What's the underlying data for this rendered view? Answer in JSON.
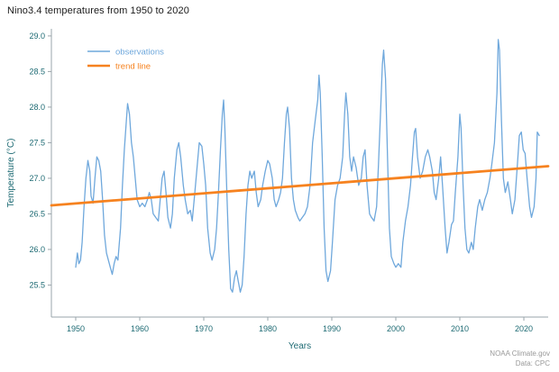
{
  "chart_data": {
    "type": "line",
    "title": "Nino3.4 temperatures from 1950 to 2020",
    "xlabel": "Years",
    "ylabel": "Temperature (°C)",
    "xlim": [
      1946.2,
      2023.8
    ],
    "ylim": [
      25.05,
      29.1
    ],
    "xticks": [
      1950,
      1960,
      1970,
      1980,
      1990,
      2000,
      2010,
      2020
    ],
    "yticks": [
      25.5,
      26.0,
      26.5,
      27.0,
      27.5,
      28.0,
      28.5,
      29.0
    ],
    "grid": false,
    "legend_position": "upper-left",
    "series": [
      {
        "name": "observations",
        "color": "#6fa8dc",
        "width": 1.3,
        "points": [
          [
            1950.0,
            25.75
          ],
          [
            1950.25,
            25.95
          ],
          [
            1950.5,
            25.8
          ],
          [
            1950.75,
            25.85
          ],
          [
            1951.0,
            26.1
          ],
          [
            1951.3,
            26.6
          ],
          [
            1951.6,
            27.0
          ],
          [
            1951.9,
            27.25
          ],
          [
            1952.2,
            27.1
          ],
          [
            1952.4,
            26.75
          ],
          [
            1952.7,
            26.65
          ],
          [
            1953.0,
            27.0
          ],
          [
            1953.3,
            27.3
          ],
          [
            1953.6,
            27.25
          ],
          [
            1953.9,
            27.1
          ],
          [
            1954.2,
            26.7
          ],
          [
            1954.5,
            26.2
          ],
          [
            1954.8,
            25.95
          ],
          [
            1955.1,
            25.85
          ],
          [
            1955.4,
            25.75
          ],
          [
            1955.7,
            25.65
          ],
          [
            1956.0,
            25.8
          ],
          [
            1956.3,
            25.9
          ],
          [
            1956.6,
            25.85
          ],
          [
            1957.0,
            26.3
          ],
          [
            1957.3,
            26.9
          ],
          [
            1957.6,
            27.4
          ],
          [
            1957.9,
            27.8
          ],
          [
            1958.1,
            28.05
          ],
          [
            1958.4,
            27.9
          ],
          [
            1958.7,
            27.5
          ],
          [
            1959.0,
            27.3
          ],
          [
            1959.3,
            27.0
          ],
          [
            1959.6,
            26.7
          ],
          [
            1960.0,
            26.6
          ],
          [
            1960.4,
            26.65
          ],
          [
            1960.8,
            26.6
          ],
          [
            1961.2,
            26.7
          ],
          [
            1961.5,
            26.8
          ],
          [
            1961.8,
            26.7
          ],
          [
            1962.1,
            26.5
          ],
          [
            1962.5,
            26.45
          ],
          [
            1962.9,
            26.4
          ],
          [
            1963.2,
            26.7
          ],
          [
            1963.5,
            27.0
          ],
          [
            1963.8,
            27.1
          ],
          [
            1964.1,
            26.8
          ],
          [
            1964.4,
            26.45
          ],
          [
            1964.8,
            26.3
          ],
          [
            1965.1,
            26.5
          ],
          [
            1965.4,
            27.0
          ],
          [
            1965.8,
            27.4
          ],
          [
            1966.1,
            27.5
          ],
          [
            1966.4,
            27.3
          ],
          [
            1966.8,
            26.9
          ],
          [
            1967.1,
            26.7
          ],
          [
            1967.5,
            26.5
          ],
          [
            1967.9,
            26.55
          ],
          [
            1968.2,
            26.4
          ],
          [
            1968.6,
            26.8
          ],
          [
            1969.0,
            27.2
          ],
          [
            1969.3,
            27.5
          ],
          [
            1969.7,
            27.45
          ],
          [
            1970.0,
            27.2
          ],
          [
            1970.3,
            26.9
          ],
          [
            1970.6,
            26.3
          ],
          [
            1971.0,
            25.95
          ],
          [
            1971.3,
            25.85
          ],
          [
            1971.7,
            26.0
          ],
          [
            1972.0,
            26.3
          ],
          [
            1972.3,
            26.8
          ],
          [
            1972.6,
            27.4
          ],
          [
            1972.9,
            27.9
          ],
          [
            1973.1,
            28.1
          ],
          [
            1973.3,
            27.7
          ],
          [
            1973.6,
            26.8
          ],
          [
            1973.9,
            26.0
          ],
          [
            1974.2,
            25.45
          ],
          [
            1974.5,
            25.4
          ],
          [
            1974.8,
            25.6
          ],
          [
            1975.1,
            25.7
          ],
          [
            1975.4,
            25.55
          ],
          [
            1975.7,
            25.4
          ],
          [
            1976.0,
            25.5
          ],
          [
            1976.3,
            25.9
          ],
          [
            1976.6,
            26.5
          ],
          [
            1976.9,
            26.9
          ],
          [
            1977.2,
            27.1
          ],
          [
            1977.5,
            27.0
          ],
          [
            1977.9,
            27.1
          ],
          [
            1978.2,
            26.8
          ],
          [
            1978.5,
            26.6
          ],
          [
            1978.9,
            26.7
          ],
          [
            1979.2,
            26.9
          ],
          [
            1979.6,
            27.1
          ],
          [
            1980.0,
            27.25
          ],
          [
            1980.3,
            27.2
          ],
          [
            1980.7,
            27.0
          ],
          [
            1981.0,
            26.7
          ],
          [
            1981.3,
            26.6
          ],
          [
            1981.7,
            26.7
          ],
          [
            1982.0,
            26.8
          ],
          [
            1982.3,
            27.0
          ],
          [
            1982.6,
            27.5
          ],
          [
            1982.9,
            27.9
          ],
          [
            1983.1,
            28.0
          ],
          [
            1983.4,
            27.7
          ],
          [
            1983.7,
            27.0
          ],
          [
            1984.0,
            26.7
          ],
          [
            1984.3,
            26.55
          ],
          [
            1984.7,
            26.45
          ],
          [
            1985.0,
            26.4
          ],
          [
            1985.4,
            26.45
          ],
          [
            1985.8,
            26.5
          ],
          [
            1986.2,
            26.6
          ],
          [
            1986.6,
            26.9
          ],
          [
            1987.0,
            27.5
          ],
          [
            1987.4,
            27.8
          ],
          [
            1987.8,
            28.1
          ],
          [
            1988.0,
            28.45
          ],
          [
            1988.2,
            28.2
          ],
          [
            1988.5,
            27.3
          ],
          [
            1988.8,
            26.3
          ],
          [
            1989.1,
            25.7
          ],
          [
            1989.4,
            25.55
          ],
          [
            1989.8,
            25.7
          ],
          [
            1990.1,
            26.1
          ],
          [
            1990.5,
            26.7
          ],
          [
            1990.9,
            26.9
          ],
          [
            1991.3,
            27.0
          ],
          [
            1991.7,
            27.3
          ],
          [
            1992.0,
            27.9
          ],
          [
            1992.2,
            28.2
          ],
          [
            1992.5,
            27.9
          ],
          [
            1992.8,
            27.3
          ],
          [
            1993.1,
            27.1
          ],
          [
            1993.4,
            27.3
          ],
          [
            1993.8,
            27.15
          ],
          [
            1994.2,
            26.9
          ],
          [
            1994.6,
            27.0
          ],
          [
            1994.9,
            27.3
          ],
          [
            1995.2,
            27.4
          ],
          [
            1995.5,
            26.9
          ],
          [
            1995.9,
            26.5
          ],
          [
            1996.2,
            26.45
          ],
          [
            1996.6,
            26.4
          ],
          [
            1997.0,
            26.6
          ],
          [
            1997.3,
            27.2
          ],
          [
            1997.6,
            27.9
          ],
          [
            1997.9,
            28.6
          ],
          [
            1998.1,
            28.8
          ],
          [
            1998.4,
            28.4
          ],
          [
            1998.7,
            27.3
          ],
          [
            1999.0,
            26.3
          ],
          [
            1999.3,
            25.9
          ],
          [
            1999.7,
            25.8
          ],
          [
            2000.0,
            25.75
          ],
          [
            2000.4,
            25.8
          ],
          [
            2000.8,
            25.75
          ],
          [
            2001.1,
            26.1
          ],
          [
            2001.5,
            26.4
          ],
          [
            2001.9,
            26.6
          ],
          [
            2002.3,
            26.9
          ],
          [
            2002.6,
            27.3
          ],
          [
            2002.9,
            27.65
          ],
          [
            2003.1,
            27.7
          ],
          [
            2003.4,
            27.3
          ],
          [
            2003.8,
            27.0
          ],
          [
            2004.2,
            27.1
          ],
          [
            2004.6,
            27.3
          ],
          [
            2005.0,
            27.4
          ],
          [
            2005.3,
            27.3
          ],
          [
            2005.7,
            27.1
          ],
          [
            2006.0,
            26.8
          ],
          [
            2006.3,
            26.7
          ],
          [
            2006.7,
            27.0
          ],
          [
            2007.0,
            27.3
          ],
          [
            2007.3,
            26.9
          ],
          [
            2007.7,
            26.3
          ],
          [
            2008.0,
            25.95
          ],
          [
            2008.3,
            26.1
          ],
          [
            2008.7,
            26.35
          ],
          [
            2009.0,
            26.4
          ],
          [
            2009.3,
            26.8
          ],
          [
            2009.7,
            27.3
          ],
          [
            2010.0,
            27.9
          ],
          [
            2010.2,
            27.7
          ],
          [
            2010.5,
            26.9
          ],
          [
            2010.8,
            26.3
          ],
          [
            2011.1,
            26.0
          ],
          [
            2011.4,
            25.95
          ],
          [
            2011.8,
            26.1
          ],
          [
            2012.1,
            26.0
          ],
          [
            2012.4,
            26.3
          ],
          [
            2012.8,
            26.6
          ],
          [
            2013.1,
            26.7
          ],
          [
            2013.5,
            26.55
          ],
          [
            2013.9,
            26.7
          ],
          [
            2014.3,
            26.8
          ],
          [
            2014.7,
            27.0
          ],
          [
            2015.0,
            27.2
          ],
          [
            2015.4,
            27.5
          ],
          [
            2015.8,
            28.2
          ],
          [
            2016.0,
            28.95
          ],
          [
            2016.2,
            28.8
          ],
          [
            2016.5,
            27.8
          ],
          [
            2016.8,
            27.0
          ],
          [
            2017.1,
            26.8
          ],
          [
            2017.5,
            26.95
          ],
          [
            2017.9,
            26.7
          ],
          [
            2018.2,
            26.5
          ],
          [
            2018.6,
            26.7
          ],
          [
            2019.0,
            27.2
          ],
          [
            2019.3,
            27.6
          ],
          [
            2019.6,
            27.65
          ],
          [
            2019.9,
            27.4
          ],
          [
            2020.2,
            27.35
          ],
          [
            2020.5,
            27.0
          ],
          [
            2020.9,
            26.6
          ],
          [
            2021.2,
            26.45
          ],
          [
            2021.6,
            26.6
          ],
          [
            2021.9,
            27.0
          ],
          [
            2022.1,
            27.65
          ],
          [
            2022.4,
            27.6
          ]
        ]
      },
      {
        "name": "trend line",
        "color": "#f6821f",
        "width": 2.8,
        "points": [
          [
            1946.2,
            26.62
          ],
          [
            2023.8,
            27.17
          ]
        ]
      }
    ]
  },
  "footer": {
    "line1": "NOAA Climate.gov",
    "line2": "Data: CPC"
  },
  "colors": {
    "axis": "#9aa5ab",
    "tick_label": "#1d6a73",
    "axis_label": "#1d6a73",
    "title": "#1a1a1a",
    "credit": "#999999",
    "background": "#ffffff"
  }
}
